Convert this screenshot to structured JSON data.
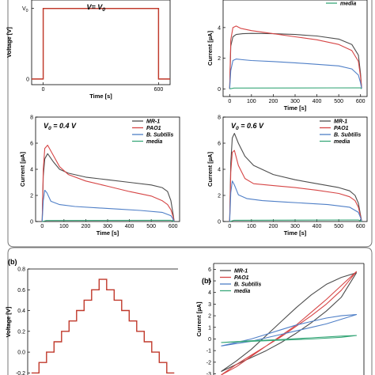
{
  "figure_labels": {
    "b1": "(b)",
    "b2": "(b)"
  },
  "colors": {
    "MR-1": "#4d4d4d",
    "PAO1": "#d64545",
    "B. Subtilis": "#4f7fc7",
    "media": "#3aa87a",
    "step": "#c0392b"
  },
  "chart_data": [
    {
      "id": "voltage_step",
      "type": "line",
      "xlabel": "Time [s]",
      "ylabel": "Voltage [V]",
      "annotation": "V= V0",
      "xlim": [
        -60,
        660
      ],
      "xticks": [
        {
          "v": 0,
          "label": "0"
        },
        {
          "v": 600,
          "label": "600"
        }
      ],
      "yticks": [
        {
          "v": 0,
          "label": "0"
        },
        {
          "v": 1,
          "label": "V0"
        }
      ],
      "series": [
        {
          "key": "step",
          "x": [
            -60,
            0,
            0,
            600,
            600,
            660
          ],
          "y": [
            0,
            0,
            1,
            1,
            0,
            0
          ]
        }
      ]
    },
    {
      "id": "current_top_right",
      "type": "line",
      "xlabel": "Time [s]",
      "ylabel": "Current [µA]",
      "xlim": [
        -30,
        630
      ],
      "xticks": [
        {
          "v": 0,
          "label": "0"
        },
        {
          "v": 100,
          "label": "100"
        },
        {
          "v": 200,
          "label": "200"
        },
        {
          "v": 300,
          "label": "300"
        },
        {
          "v": 400,
          "label": "400"
        },
        {
          "v": 500,
          "label": "500"
        },
        {
          "v": 600,
          "label": "600"
        }
      ],
      "yticks": [
        {
          "v": 0,
          "label": "0"
        },
        {
          "v": 2,
          "label": "2"
        },
        {
          "v": 4,
          "label": "4"
        }
      ],
      "legend": [
        "media"
      ],
      "series": [
        {
          "key": "MR-1",
          "x": [
            0,
            5,
            15,
            30,
            60,
            100,
            200,
            300,
            400,
            500,
            560,
            590,
            600,
            605
          ],
          "y": [
            0,
            2.8,
            3.4,
            3.55,
            3.6,
            3.62,
            3.6,
            3.55,
            3.45,
            3.25,
            2.9,
            2.2,
            1.0,
            0.05
          ]
        },
        {
          "key": "PAO1",
          "x": [
            0,
            5,
            15,
            30,
            50,
            100,
            200,
            300,
            400,
            500,
            560,
            590,
            600,
            605
          ],
          "y": [
            0,
            3.2,
            4.0,
            4.1,
            3.95,
            3.8,
            3.6,
            3.4,
            3.2,
            2.9,
            2.5,
            1.8,
            0.8,
            0.05
          ]
        },
        {
          "key": "B. Subtilis",
          "x": [
            0,
            5,
            15,
            30,
            60,
            100,
            200,
            300,
            400,
            500,
            560,
            590,
            600,
            605
          ],
          "y": [
            0,
            1.2,
            1.85,
            1.95,
            1.9,
            1.85,
            1.78,
            1.7,
            1.6,
            1.5,
            1.3,
            0.9,
            0.4,
            0.02
          ]
        },
        {
          "key": "media",
          "x": [
            0,
            20,
            600,
            605
          ],
          "y": [
            0,
            0.05,
            0.07,
            0
          ]
        }
      ]
    },
    {
      "id": "current_0_4V",
      "type": "line",
      "xlabel": "Time [s]",
      "ylabel": "Current [µA]",
      "annotation": "V0 = 0.4 V",
      "xlim": [
        -30,
        630
      ],
      "ylim": [
        0,
        8
      ],
      "xticks": [
        {
          "v": 0,
          "label": "0"
        },
        {
          "v": 100,
          "label": "100"
        },
        {
          "v": 200,
          "label": "200"
        },
        {
          "v": 300,
          "label": "300"
        },
        {
          "v": 400,
          "label": "400"
        },
        {
          "v": 500,
          "label": "500"
        },
        {
          "v": 600,
          "label": "600"
        }
      ],
      "yticks": [
        {
          "v": 0,
          "label": "0"
        },
        {
          "v": 2,
          "label": "2"
        },
        {
          "v": 4,
          "label": "4"
        },
        {
          "v": 6,
          "label": "6"
        },
        {
          "v": 8,
          "label": "8"
        }
      ],
      "legend": [
        "MR-1",
        "PAO1",
        "B. Subtilis",
        "media"
      ],
      "series": [
        {
          "key": "MR-1",
          "x": [
            0,
            5,
            12,
            25,
            50,
            80,
            120,
            200,
            300,
            400,
            500,
            550,
            575,
            590,
            600,
            605
          ],
          "y": [
            0,
            3.5,
            4.8,
            5.2,
            4.6,
            4.0,
            3.7,
            3.4,
            3.2,
            3.0,
            2.8,
            2.6,
            2.3,
            1.6,
            0.6,
            0.05
          ]
        },
        {
          "key": "PAO1",
          "x": [
            0,
            5,
            12,
            25,
            50,
            80,
            120,
            200,
            300,
            400,
            500,
            550,
            575,
            590,
            600,
            605
          ],
          "y": [
            0,
            4.0,
            5.6,
            5.85,
            5.1,
            4.2,
            3.6,
            3.1,
            2.7,
            2.3,
            1.95,
            1.6,
            1.3,
            0.9,
            0.4,
            0.03
          ]
        },
        {
          "key": "B. Subtilis",
          "x": [
            0,
            5,
            12,
            22,
            40,
            80,
            150,
            250,
            350,
            450,
            550,
            590,
            600,
            605
          ],
          "y": [
            0,
            1.6,
            2.4,
            2.2,
            1.55,
            1.3,
            1.15,
            1.05,
            0.95,
            0.85,
            0.7,
            0.45,
            0.2,
            0.02
          ]
        },
        {
          "key": "media",
          "x": [
            0,
            20,
            590,
            605
          ],
          "y": [
            0,
            0.08,
            0.1,
            0
          ]
        }
      ]
    },
    {
      "id": "current_0_6V",
      "type": "line",
      "xlabel": "Time [s]",
      "ylabel": "Current [µA]",
      "annotation": "V0 = 0.6 V",
      "xlim": [
        -30,
        630
      ],
      "ylim": [
        0,
        8
      ],
      "xticks": [
        {
          "v": 0,
          "label": "0"
        },
        {
          "v": 100,
          "label": "100"
        },
        {
          "v": 200,
          "label": "200"
        },
        {
          "v": 300,
          "label": "300"
        },
        {
          "v": 400,
          "label": "400"
        },
        {
          "v": 500,
          "label": "500"
        },
        {
          "v": 600,
          "label": "600"
        }
      ],
      "yticks": [
        {
          "v": 0,
          "label": "0"
        },
        {
          "v": 2,
          "label": "2"
        },
        {
          "v": 4,
          "label": "4"
        },
        {
          "v": 6,
          "label": "6"
        },
        {
          "v": 8,
          "label": "8"
        }
      ],
      "legend": [
        "MR-1",
        "PAO1",
        "B. Subtilis",
        "media"
      ],
      "series": [
        {
          "key": "MR-1",
          "x": [
            0,
            5,
            12,
            22,
            40,
            70,
            110,
            200,
            300,
            400,
            500,
            550,
            575,
            590,
            600,
            605
          ],
          "y": [
            0,
            4.5,
            6.4,
            6.75,
            6.0,
            5.0,
            4.3,
            3.6,
            3.2,
            2.9,
            2.6,
            2.35,
            2.0,
            1.4,
            0.5,
            0.05
          ]
        },
        {
          "key": "PAO1",
          "x": [
            0,
            5,
            12,
            22,
            40,
            70,
            110,
            200,
            300,
            400,
            500,
            550,
            575,
            590,
            600,
            605
          ],
          "y": [
            0,
            3.8,
            5.3,
            5.45,
            4.3,
            3.3,
            2.9,
            2.75,
            2.6,
            2.4,
            2.15,
            1.9,
            1.6,
            1.1,
            0.4,
            0.03
          ]
        },
        {
          "key": "B. Subtilis",
          "x": [
            0,
            5,
            12,
            22,
            40,
            80,
            150,
            250,
            350,
            450,
            550,
            590,
            600,
            605
          ],
          "y": [
            0,
            2.2,
            3.1,
            2.8,
            2.05,
            1.75,
            1.6,
            1.5,
            1.4,
            1.3,
            1.1,
            0.7,
            0.3,
            0.02
          ]
        },
        {
          "key": "media",
          "x": [
            0,
            20,
            590,
            605
          ],
          "y": [
            0,
            0.1,
            0.12,
            0
          ]
        }
      ]
    },
    {
      "id": "staircase",
      "type": "line",
      "ylabel": "Voltage [V]",
      "xlim": [
        0,
        20
      ],
      "ylim": [
        -0.22,
        0.8
      ],
      "yticks": [
        {
          "v": -0.2,
          "label": "-0.2"
        },
        {
          "v": 0,
          "label": "0.0"
        },
        {
          "v": 0.2,
          "label": "0.2"
        },
        {
          "v": 0.4,
          "label": "0.4"
        },
        {
          "v": 0.6,
          "label": "0.6"
        },
        {
          "v": 0.8,
          "label": "0.8"
        }
      ],
      "levels": [
        -0.2,
        -0.1,
        0.0,
        0.1,
        0.2,
        0.3,
        0.4,
        0.5,
        0.6,
        0.7,
        0.6,
        0.5,
        0.4,
        0.3,
        0.2,
        0.1,
        0.0,
        -0.1,
        -0.2
      ]
    },
    {
      "id": "cyclic_voltammetry",
      "type": "line",
      "ylabel": "Current [µA]",
      "xlim": [
        -0.25,
        0.75
      ],
      "ylim": [
        -3.1,
        6.5
      ],
      "yticks": [
        {
          "v": -3,
          "label": "-3"
        },
        {
          "v": -2,
          "label": "-2"
        },
        {
          "v": -1,
          "label": "-1"
        },
        {
          "v": 0,
          "label": "0"
        },
        {
          "v": 1,
          "label": "1"
        },
        {
          "v": 2,
          "label": "2"
        },
        {
          "v": 3,
          "label": "3"
        },
        {
          "v": 4,
          "label": "4"
        },
        {
          "v": 5,
          "label": "5"
        },
        {
          "v": 6,
          "label": "6"
        }
      ],
      "legend": [
        "MR-1",
        "PAO1",
        "B. Subtilis",
        "media"
      ],
      "series": [
        {
          "key": "MR-1",
          "x": [
            -0.2,
            -0.1,
            0.0,
            0.1,
            0.2,
            0.3,
            0.4,
            0.5,
            0.6,
            0.7,
            0.6,
            0.5,
            0.4,
            0.3,
            0.2,
            0.1,
            0.0,
            -0.1,
            -0.2
          ],
          "y": [
            -2.8,
            -1.9,
            -0.9,
            0.3,
            1.5,
            2.7,
            3.8,
            4.7,
            5.3,
            5.7,
            3.6,
            2.4,
            1.4,
            0.5,
            -0.3,
            -1.0,
            -1.6,
            -2.2,
            -2.8
          ]
        },
        {
          "key": "PAO1",
          "x": [
            -0.2,
            -0.1,
            0.0,
            0.1,
            0.2,
            0.3,
            0.4,
            0.5,
            0.6,
            0.7,
            0.6,
            0.5,
            0.4,
            0.3,
            0.2,
            0.1,
            0.0,
            -0.1,
            -0.2
          ],
          "y": [
            -3.1,
            -2.4,
            -1.5,
            -0.6,
            0.3,
            1.2,
            2.3,
            3.4,
            4.6,
            5.8,
            4.2,
            3.0,
            2.0,
            1.1,
            0.2,
            -0.6,
            -1.4,
            -2.2,
            -3.1
          ]
        },
        {
          "key": "B. Subtilis",
          "x": [
            -0.2,
            -0.1,
            0.0,
            0.1,
            0.2,
            0.3,
            0.4,
            0.5,
            0.6,
            0.7,
            0.6,
            0.5,
            0.4,
            0.3,
            0.2,
            0.1,
            0.0,
            -0.1,
            -0.2
          ],
          "y": [
            -0.6,
            -0.3,
            0.0,
            0.4,
            0.8,
            1.2,
            1.5,
            1.8,
            2.0,
            2.1,
            1.7,
            1.3,
            1.0,
            0.7,
            0.4,
            0.1,
            -0.2,
            -0.4,
            -0.6
          ]
        },
        {
          "key": "media",
          "x": [
            -0.2,
            0.0,
            0.2,
            0.4,
            0.6,
            0.7,
            0.6,
            0.4,
            0.2,
            0.0,
            -0.2
          ],
          "y": [
            -0.3,
            -0.2,
            -0.1,
            0.0,
            0.15,
            0.3,
            0.25,
            0.1,
            -0.05,
            -0.15,
            -0.3
          ]
        }
      ]
    }
  ]
}
